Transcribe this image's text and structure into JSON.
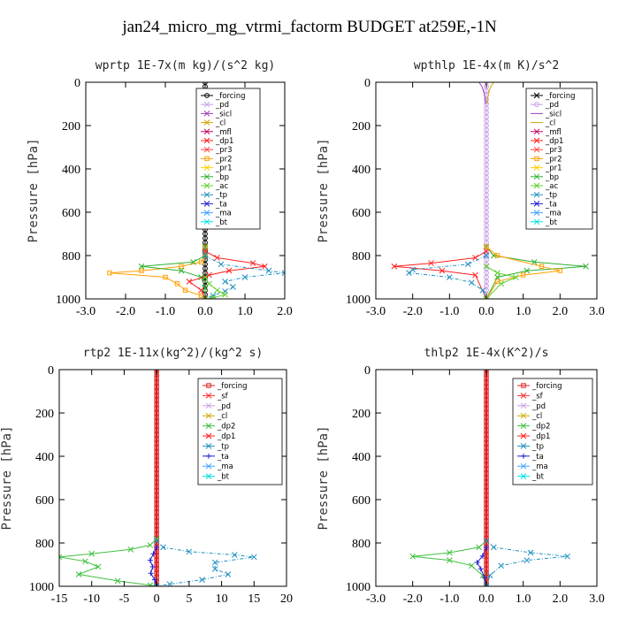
{
  "figure": {
    "title": "jan24_micro_mg_vtrmi_factorm  BUDGET at259E,-1N"
  },
  "colors": {
    "forcing": "#000000",
    "pd": "#c8a0e6",
    "sicl": "#a040c0",
    "cl": "#d0a800",
    "mfl": "#c00060",
    "dp1": "#ff2020",
    "pr3": "#ff4040",
    "pr2": "#ffa000",
    "pr1": "#ffd000",
    "bp": "#30b030",
    "ac": "#60d030",
    "tp": "#2090c0",
    "ta": "#2020d0",
    "ma": "#40a0ff",
    "bt": "#00e0e0",
    "sf": "#ff3030",
    "dp2": "#40c040",
    "forcing_thick": "#e02020"
  },
  "chart_data": [
    {
      "type": "line",
      "title": "wprtp  1E-7x(m kg)/(s^2 kg)",
      "ylabel": "Pressure [hPa]",
      "xlim": [
        -3.0,
        2.0
      ],
      "ylim": [
        1000,
        0
      ],
      "xticks": [
        -3.0,
        -2.0,
        -1.0,
        0.0,
        1.0,
        2.0
      ],
      "xtick_labels": [
        "-3.0",
        "-2.0",
        "-1.0",
        "0.0",
        "1.0",
        "2.0"
      ],
      "yticks": [
        0,
        200,
        400,
        600,
        800,
        1000
      ],
      "ytick_labels": [
        "0",
        "200",
        "400",
        "600",
        "800",
        "1000"
      ],
      "legend": [
        "_forcing",
        "_pd",
        "_sicl",
        "_cl",
        "_mfl",
        "_dp1",
        "_pr3",
        "_pr2",
        "_pr1",
        "_bp",
        "_ac",
        "_tp",
        "_ta",
        "_ma",
        "_bt"
      ],
      "series": [
        {
          "name": "_forcing",
          "color_key": "forcing",
          "marker": "o",
          "x": [
            0,
            0,
            0,
            0,
            0,
            0,
            0,
            0,
            0,
            0,
            0,
            0,
            0,
            0,
            0,
            0,
            0,
            0,
            0,
            0,
            0,
            0,
            0,
            0,
            0,
            0,
            0,
            0,
            0,
            0,
            0,
            0,
            0,
            0,
            0,
            0,
            0,
            0,
            0,
            0,
            0,
            0,
            0,
            0,
            0,
            0,
            0,
            0,
            0,
            0,
            0
          ],
          "y": [
            0,
            20,
            40,
            60,
            80,
            100,
            120,
            140,
            160,
            180,
            200,
            220,
            240,
            260,
            280,
            300,
            320,
            340,
            360,
            380,
            400,
            420,
            440,
            460,
            480,
            500,
            520,
            540,
            560,
            580,
            600,
            620,
            640,
            660,
            680,
            700,
            720,
            740,
            760,
            780,
            800,
            820,
            840,
            860,
            880,
            900,
            920,
            940,
            960,
            980,
            1000
          ]
        },
        {
          "name": "_pr2",
          "color_key": "pr2",
          "marker": "s",
          "x": [
            0,
            0,
            -0.1,
            -0.6,
            -1.6,
            -2.4,
            -1.0,
            -0.7,
            -0.5,
            -0.1,
            0
          ],
          "y": [
            760,
            800,
            830,
            850,
            870,
            880,
            900,
            930,
            960,
            985,
            1000
          ]
        },
        {
          "name": "_bp",
          "color_key": "bp",
          "marker": "x",
          "x": [
            0,
            0,
            -0.3,
            -1.6,
            -0.6,
            -0.1,
            0,
            0
          ],
          "y": [
            760,
            800,
            830,
            850,
            870,
            900,
            950,
            1000
          ]
        },
        {
          "name": "_dp1",
          "color_key": "dp1",
          "marker": "x",
          "x": [
            0,
            0.3,
            1.2,
            1.5,
            0.6,
            0.1,
            -0.4,
            -0.1,
            0
          ],
          "y": [
            780,
            810,
            835,
            850,
            870,
            890,
            920,
            960,
            1000
          ]
        },
        {
          "name": "_tp",
          "color_key": "tp",
          "marker": "x",
          "x": [
            0,
            0.4,
            1.6,
            2.0,
            1.0,
            0.5,
            0.7,
            0.5,
            0.2,
            0
          ],
          "y": [
            800,
            840,
            870,
            880,
            900,
            920,
            945,
            965,
            985,
            1000
          ]
        },
        {
          "name": "_ac",
          "color_key": "ac",
          "marker": "x",
          "x": [
            0,
            0.1,
            0.3,
            0.5,
            0.2,
            0
          ],
          "y": [
            900,
            930,
            960,
            980,
            995,
            1000
          ]
        }
      ]
    },
    {
      "type": "line",
      "title": "wpthlp  1E-4x(m K)/s^2",
      "ylabel": "Pressure [hPa]",
      "xlim": [
        -3.0,
        3.0
      ],
      "ylim": [
        1000,
        0
      ],
      "xticks": [
        -3.0,
        -2.0,
        -1.0,
        0.0,
        1.0,
        2.0,
        3.0
      ],
      "xtick_labels": [
        "-3.0",
        "-2.0",
        "-1.0",
        "0.0",
        "1.0",
        "2.0",
        "3.0"
      ],
      "yticks": [
        0,
        200,
        400,
        600,
        800,
        1000
      ],
      "ytick_labels": [
        "0",
        "200",
        "400",
        "600",
        "800",
        "1000"
      ],
      "legend": [
        "_forcing",
        "_pd",
        "_sicl",
        "_cl",
        "_mfl",
        "_dp1",
        "_pr3",
        "_pr2",
        "_pr1",
        "_bp",
        "_ac",
        "_tp",
        "_ta",
        "_ma",
        "_bt"
      ],
      "series": [
        {
          "name": "_pd",
          "color_key": "pd",
          "marker": "o",
          "x": [
            0,
            0,
            0,
            0,
            0,
            0,
            0,
            0,
            0,
            0,
            0,
            0,
            0,
            0,
            0,
            0,
            0,
            0,
            0,
            0,
            0,
            0,
            0,
            0,
            0,
            0,
            0,
            0,
            0,
            0,
            0,
            0,
            0,
            0,
            0,
            0,
            0,
            0,
            0,
            0,
            0,
            0,
            0,
            0,
            0,
            0,
            0,
            0,
            0,
            0,
            0
          ],
          "y": [
            0,
            20,
            40,
            60,
            80,
            100,
            120,
            140,
            160,
            180,
            200,
            220,
            240,
            260,
            280,
            300,
            320,
            340,
            360,
            380,
            400,
            420,
            440,
            460,
            480,
            500,
            520,
            540,
            560,
            580,
            600,
            620,
            640,
            660,
            680,
            700,
            720,
            740,
            760,
            780,
            800,
            820,
            840,
            860,
            880,
            900,
            920,
            940,
            960,
            980,
            1000
          ]
        },
        {
          "name": "_cl",
          "color_key": "cl",
          "marker": "none",
          "x": [
            0.2,
            0.12,
            0.08,
            0.05,
            0.03,
            0.02
          ],
          "y": [
            0,
            20,
            40,
            60,
            80,
            100
          ]
        },
        {
          "name": "_sicl",
          "color_key": "sicl",
          "marker": "none",
          "x": [
            -0.2,
            -0.12,
            -0.08,
            -0.05,
            -0.03,
            -0.02
          ],
          "y": [
            0,
            20,
            40,
            60,
            80,
            100
          ]
        },
        {
          "name": "_bp",
          "color_key": "bp",
          "marker": "x",
          "x": [
            0,
            0.2,
            1.3,
            2.7,
            1.1,
            0.3,
            0
          ],
          "y": [
            760,
            800,
            830,
            850,
            870,
            900,
            1000
          ]
        },
        {
          "name": "_dp1",
          "color_key": "dp1",
          "marker": "x",
          "x": [
            0,
            -0.3,
            -1.5,
            -2.5,
            -1.2,
            -0.3,
            0
          ],
          "y": [
            780,
            810,
            835,
            850,
            870,
            890,
            1000
          ]
        },
        {
          "name": "_pr2",
          "color_key": "pr2",
          "marker": "s",
          "x": [
            0,
            0.3,
            1.5,
            2.0,
            1.0,
            0.3,
            0
          ],
          "y": [
            760,
            800,
            850,
            870,
            890,
            920,
            1000
          ]
        },
        {
          "name": "_tp",
          "color_key": "tp",
          "marker": "x",
          "x": [
            0,
            -0.5,
            -2.0,
            -2.1,
            -1.0,
            -0.4,
            -0.1,
            0
          ],
          "y": [
            800,
            840,
            865,
            880,
            900,
            925,
            960,
            1000
          ]
        },
        {
          "name": "_ac",
          "color_key": "ac",
          "marker": "x",
          "x": [
            0,
            0.3,
            0.8,
            0.4,
            0
          ],
          "y": [
            850,
            880,
            900,
            930,
            1000
          ]
        }
      ]
    },
    {
      "type": "line",
      "title": "rtp2  1E-11x(kg^2)/(kg^2 s)",
      "ylabel": "Pressure [hPa]",
      "xlim": [
        -15,
        20
      ],
      "ylim": [
        1000,
        0
      ],
      "xticks": [
        -15,
        -10,
        -5,
        0,
        5,
        10,
        15,
        20
      ],
      "xtick_labels": [
        "-15",
        "-10",
        "-5",
        "0",
        "5",
        "10",
        "15",
        "20"
      ],
      "yticks": [
        0,
        200,
        400,
        600,
        800,
        1000
      ],
      "ytick_labels": [
        "0",
        "200",
        "400",
        "600",
        "800",
        "1000"
      ],
      "legend": [
        "_forcing",
        "_sf",
        "_pd",
        "_cl",
        "_dp2",
        "_dp1",
        "_tp",
        "_ta",
        "_ma",
        "_bt"
      ],
      "series": [
        {
          "name": "_forcing",
          "color_key": "forcing_thick",
          "marker": "s",
          "x": [
            0,
            0,
            0,
            0,
            0,
            0,
            0,
            0,
            0,
            0,
            0,
            0,
            0,
            0,
            0,
            0,
            0,
            0,
            0,
            0,
            0,
            0,
            0,
            0,
            0,
            0,
            0,
            0,
            0,
            0,
            0,
            0,
            0,
            0,
            0,
            0,
            0,
            0,
            0,
            0,
            0,
            0,
            0,
            0,
            0,
            0,
            0,
            0,
            0,
            0,
            0
          ],
          "y": [
            0,
            20,
            40,
            60,
            80,
            100,
            120,
            140,
            160,
            180,
            200,
            220,
            240,
            260,
            280,
            300,
            320,
            340,
            360,
            380,
            400,
            420,
            440,
            460,
            480,
            500,
            520,
            540,
            560,
            580,
            600,
            620,
            640,
            660,
            680,
            700,
            720,
            740,
            760,
            780,
            800,
            820,
            840,
            860,
            880,
            900,
            920,
            940,
            960,
            980,
            1000
          ]
        },
        {
          "name": "_dp2",
          "color_key": "dp2",
          "marker": "x",
          "x": [
            0,
            -1,
            -4,
            -10,
            -15,
            -11,
            -9,
            -12,
            -6,
            -1,
            0
          ],
          "y": [
            780,
            810,
            830,
            850,
            865,
            885,
            910,
            945,
            975,
            995,
            1000
          ]
        },
        {
          "name": "_tp",
          "color_key": "tp",
          "marker": "x",
          "x": [
            0,
            1,
            5,
            12,
            15,
            9,
            9,
            11,
            7,
            2,
            0
          ],
          "y": [
            790,
            820,
            840,
            855,
            865,
            890,
            920,
            945,
            970,
            990,
            1000
          ]
        },
        {
          "name": "_ta",
          "color_key": "ta",
          "marker": "+",
          "x": [
            0,
            -0.5,
            -1.0,
            -0.6,
            -0.9,
            -0.3,
            0
          ],
          "y": [
            820,
            850,
            880,
            910,
            940,
            970,
            1000
          ]
        }
      ]
    },
    {
      "type": "line",
      "title": "thlp2  1E-4x(K^2)/s",
      "ylabel": "Pressure [hPa]",
      "xlim": [
        -3.0,
        3.0
      ],
      "ylim": [
        1000,
        0
      ],
      "xticks": [
        -3.0,
        -2.0,
        -1.0,
        0.0,
        1.0,
        2.0,
        3.0
      ],
      "xtick_labels": [
        "-3.0",
        "-2.0",
        "-1.0",
        "0.0",
        "1.0",
        "2.0",
        "3.0"
      ],
      "yticks": [
        0,
        200,
        400,
        600,
        800,
        1000
      ],
      "ytick_labels": [
        "0",
        "200",
        "400",
        "600",
        "800",
        "1000"
      ],
      "legend": [
        "_forcing",
        "_sf",
        "_pd",
        "_cl",
        "_dp2",
        "_dp1",
        "_tp",
        "_ta",
        "_ma",
        "_bt"
      ],
      "series": [
        {
          "name": "_forcing",
          "color_key": "forcing_thick",
          "marker": "s",
          "x": [
            0,
            0,
            0,
            0,
            0,
            0,
            0,
            0,
            0,
            0,
            0,
            0,
            0,
            0,
            0,
            0,
            0,
            0,
            0,
            0,
            0,
            0,
            0,
            0,
            0,
            0,
            0,
            0,
            0,
            0,
            0,
            0,
            0,
            0,
            0,
            0,
            0,
            0,
            0,
            0,
            0,
            0,
            0,
            0,
            0,
            0,
            0,
            0,
            0,
            0,
            0
          ],
          "y": [
            0,
            20,
            40,
            60,
            80,
            100,
            120,
            140,
            160,
            180,
            200,
            220,
            240,
            260,
            280,
            300,
            320,
            340,
            360,
            380,
            400,
            420,
            440,
            460,
            480,
            500,
            520,
            540,
            560,
            580,
            600,
            620,
            640,
            660,
            680,
            700,
            720,
            740,
            760,
            780,
            800,
            820,
            840,
            860,
            880,
            900,
            920,
            940,
            960,
            980,
            1000
          ]
        },
        {
          "name": "_dp2",
          "color_key": "dp2",
          "marker": "x",
          "x": [
            0,
            -0.2,
            -1.0,
            -2.0,
            -1.0,
            -0.4,
            -0.1,
            0
          ],
          "y": [
            790,
            820,
            845,
            862,
            880,
            905,
            950,
            1000
          ]
        },
        {
          "name": "_tp",
          "color_key": "tp",
          "marker": "x",
          "x": [
            0,
            0.2,
            1.2,
            2.2,
            1.1,
            0.4,
            0.1,
            0
          ],
          "y": [
            790,
            820,
            845,
            862,
            880,
            905,
            950,
            1000
          ]
        },
        {
          "name": "_ta",
          "color_key": "ta",
          "marker": "+",
          "x": [
            0,
            -0.1,
            -0.25,
            -0.15,
            -0.05,
            0
          ],
          "y": [
            820,
            860,
            890,
            920,
            960,
            1000
          ]
        }
      ]
    }
  ]
}
